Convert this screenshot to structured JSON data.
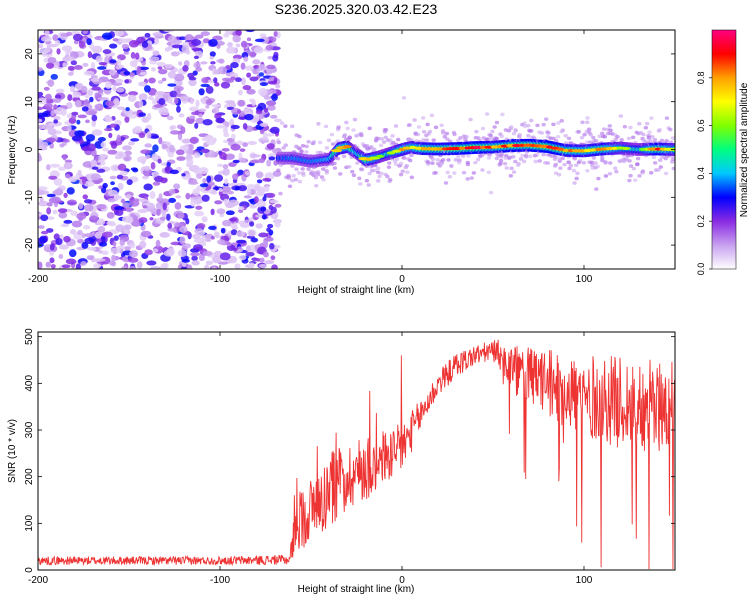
{
  "figure": {
    "title": "S236.2025.320.03.42.E23"
  },
  "chart_data": [
    {
      "type": "heatmap",
      "id": "spectrogram",
      "xlabel": "Height of straight line (km)",
      "ylabel": "Frequency (Hz)",
      "xlim": [
        -200,
        150
      ],
      "ylim": [
        -25,
        25
      ],
      "xticks": [
        -200,
        -100,
        0,
        100
      ],
      "yticks": [
        -20,
        -10,
        0,
        10,
        20
      ],
      "colorbar": {
        "label": "Normalized spectral amplitude",
        "range": [
          0,
          1
        ],
        "ticks": [
          0.0,
          0.2,
          0.4,
          0.6,
          0.8
        ],
        "tick_labels": [
          "0.0",
          "0.2",
          "0.4",
          "0.6",
          "0.8"
        ],
        "colors": [
          "#ffffff",
          "#c8a0f0",
          "#8a2be2",
          "#0000ff",
          "#00c8ff",
          "#00ff80",
          "#80ff00",
          "#ffff00",
          "#ffa000",
          "#ff0000",
          "#ff0080"
        ]
      },
      "noise_region_x": [
        -200,
        -68
      ],
      "noise_amplitude": 0.3,
      "ridge": {
        "x": [
          -68,
          -60,
          -50,
          -40,
          -35,
          -30,
          -25,
          -20,
          -15,
          -10,
          -5,
          0,
          5,
          10,
          20,
          30,
          40,
          50,
          60,
          70,
          80,
          90,
          100,
          110,
          120,
          130,
          140,
          150
        ],
        "freq": [
          -1.8,
          -1.8,
          -2.5,
          -2.0,
          0.2,
          0.6,
          -0.8,
          -2.2,
          -1.8,
          -1.2,
          -0.6,
          0.0,
          0.5,
          0.2,
          0.1,
          0.2,
          0.4,
          0.5,
          0.8,
          0.9,
          0.6,
          -0.2,
          -0.3,
          0.1,
          0.3,
          0.0,
          0.1,
          0.0
        ],
        "amplitude": [
          0.45,
          0.5,
          0.5,
          0.55,
          0.8,
          0.8,
          0.55,
          0.8,
          0.75,
          0.6,
          0.7,
          0.8,
          0.75,
          0.85,
          0.85,
          0.9,
          0.95,
          0.85,
          0.9,
          0.9,
          0.95,
          0.85,
          0.8,
          0.85,
          0.7,
          0.6,
          0.9,
          0.7
        ]
      }
    },
    {
      "type": "line",
      "id": "snr",
      "xlabel": "Height of straight line (km)",
      "ylabel": "SNR (10 * v/v)",
      "xlim": [
        -200,
        150
      ],
      "ylim": [
        0,
        510
      ],
      "xticks": [
        -200,
        -100,
        0,
        100
      ],
      "yticks": [
        0,
        100,
        200,
        300,
        400,
        500
      ],
      "color": "#ee3333",
      "envelope": {
        "x": [
          -200,
          -150,
          -100,
          -62,
          -58,
          -50,
          -40,
          -30,
          -20,
          -10,
          0,
          10,
          20,
          30,
          40,
          50,
          55,
          60,
          80,
          100,
          120,
          140,
          150
        ],
        "mean": [
          20,
          20,
          20,
          22,
          100,
          130,
          170,
          200,
          220,
          240,
          260,
          330,
          400,
          440,
          460,
          470,
          460,
          430,
          400,
          370,
          360,
          350,
          350
        ],
        "spread": [
          10,
          10,
          10,
          12,
          70,
          80,
          90,
          80,
          80,
          70,
          60,
          40,
          30,
          30,
          25,
          25,
          40,
          60,
          80,
          100,
          110,
          110,
          110
        ]
      }
    }
  ]
}
